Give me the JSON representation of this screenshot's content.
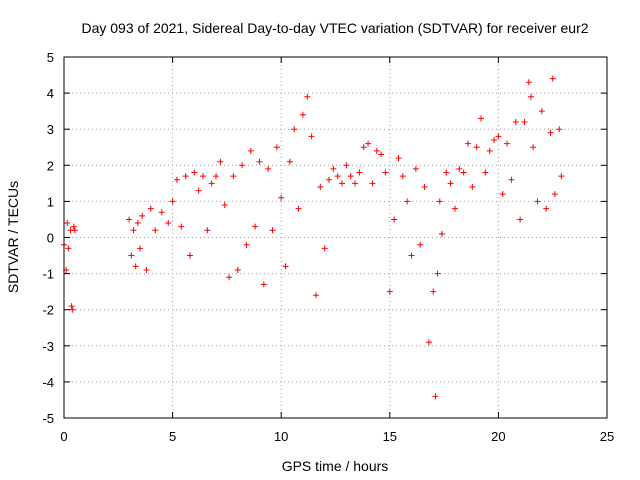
{
  "chart_data": {
    "type": "scatter",
    "title": "Day 093 of 2021, Sidereal Day-to-day VTEC variation (SDTVAR) for receiver eur2",
    "xlabel": "GPS time / hours",
    "ylabel": "SDTVAR / TECUs",
    "xlim": [
      0,
      25
    ],
    "ylim": [
      -5,
      5
    ],
    "x_ticks": [
      0,
      5,
      10,
      15,
      20,
      25
    ],
    "y_ticks": [
      -5,
      -4,
      -3,
      -2,
      -1,
      0,
      1,
      2,
      3,
      4,
      5
    ],
    "grid": true,
    "marker": "+",
    "series": [
      {
        "name": "SDTVAR",
        "color": "#ff0000",
        "x": [
          0.0,
          0.1,
          0.15,
          0.2,
          0.3,
          0.35,
          0.4,
          0.45,
          0.5,
          3.0,
          3.1,
          3.2,
          3.3,
          3.4,
          3.5,
          3.6,
          3.8,
          4.0,
          4.2,
          4.5,
          4.8,
          5.0,
          5.2,
          5.4,
          5.6,
          5.8,
          6.0,
          6.2,
          6.4,
          6.6,
          6.8,
          7.0,
          7.2,
          7.4,
          7.6,
          7.8,
          8.0,
          8.2,
          8.4,
          8.6,
          8.8,
          9.0,
          9.2,
          9.4,
          9.6,
          9.8,
          10.0,
          10.2,
          10.4,
          10.6,
          10.8,
          11.0,
          11.2,
          11.4,
          11.6,
          11.8,
          12.0,
          12.2,
          12.4,
          12.6,
          12.8,
          13.0,
          13.2,
          13.4,
          13.6,
          13.8,
          14.0,
          14.2,
          14.4,
          14.6,
          14.8,
          15.0,
          15.2,
          15.4,
          15.6,
          15.8,
          16.0,
          16.2,
          16.4,
          16.6,
          16.8,
          17.0,
          17.1,
          17.2,
          17.3,
          17.4,
          17.6,
          17.8,
          18.0,
          18.2,
          18.4,
          18.6,
          18.8,
          19.0,
          19.2,
          19.4,
          19.6,
          19.8,
          20.0,
          20.2,
          20.4,
          20.6,
          20.8,
          21.0,
          21.2,
          21.4,
          21.5,
          21.6,
          21.8,
          22.0,
          22.2,
          22.4,
          22.5,
          22.6,
          22.8,
          22.9
        ],
        "y": [
          -0.2,
          -0.9,
          0.4,
          -0.3,
          0.2,
          -1.9,
          -2.0,
          0.3,
          0.2,
          0.5,
          -0.5,
          0.2,
          -0.8,
          0.4,
          -0.3,
          0.6,
          -0.9,
          0.8,
          0.2,
          0.7,
          0.4,
          1.0,
          1.6,
          0.3,
          1.7,
          -0.5,
          1.8,
          1.3,
          1.7,
          0.2,
          1.5,
          1.7,
          2.1,
          0.9,
          -1.1,
          1.7,
          -0.9,
          2.0,
          -0.2,
          2.4,
          0.3,
          2.1,
          -1.3,
          1.9,
          0.2,
          2.5,
          1.1,
          -0.8,
          2.1,
          3.0,
          0.8,
          3.4,
          3.9,
          2.8,
          -1.6,
          1.4,
          -0.3,
          1.6,
          1.9,
          1.7,
          1.5,
          2.0,
          1.7,
          1.5,
          1.8,
          2.5,
          2.6,
          1.5,
          2.4,
          2.3,
          1.8,
          -1.5,
          0.5,
          2.2,
          1.7,
          1.0,
          -0.5,
          1.9,
          -0.2,
          1.4,
          -2.9,
          -1.5,
          -4.4,
          -1.0,
          1.0,
          0.1,
          1.8,
          1.5,
          0.8,
          1.9,
          1.8,
          2.6,
          1.4,
          2.5,
          3.3,
          1.8,
          2.4,
          2.7,
          2.8,
          1.2,
          2.6,
          1.6,
          3.2,
          0.5,
          3.2,
          4.3,
          3.9,
          2.5,
          1.0,
          3.5,
          0.8,
          2.9,
          4.4,
          1.2,
          3.0,
          1.7
        ]
      }
    ]
  }
}
